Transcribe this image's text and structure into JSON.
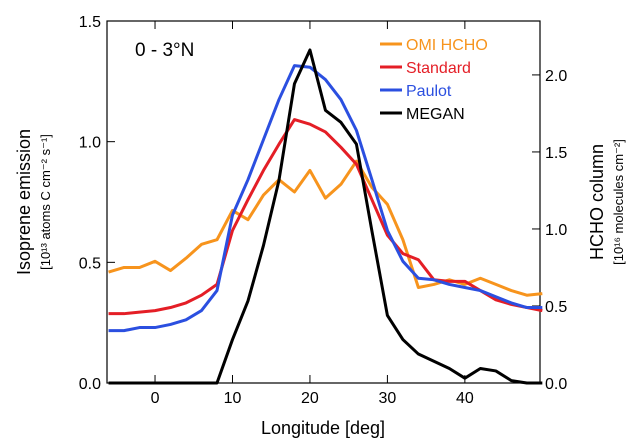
{
  "chart_data": {
    "type": "line",
    "annotation": "0 - 3°N",
    "xlabel": "Longitude [deg]",
    "ylabel": "Isoprene emission",
    "ylabel_units": "[10¹³ atoms C cm⁻² s⁻¹]",
    "y2label": "HCHO column",
    "y2label_units": "[10¹⁶ molecules cm⁻²]",
    "x": [
      -6,
      -4,
      -2,
      0,
      2,
      4,
      6,
      8,
      10,
      12,
      14,
      16,
      18,
      20,
      22,
      24,
      26,
      28,
      30,
      32,
      34,
      36,
      38,
      40,
      42,
      44,
      46,
      48,
      50
    ],
    "xlim": [
      -6.2,
      49.7
    ],
    "xticks": [
      0,
      10,
      20,
      30,
      40
    ],
    "ylim": [
      0,
      1.5
    ],
    "yticks": [
      {
        "value": 0,
        "label": "0.0"
      },
      0.5,
      {
        "value": 1,
        "label": "1.0"
      },
      1.5
    ],
    "y2lim": [
      0,
      2.35
    ],
    "y2ticks": [
      {
        "value": 0,
        "label": "0.0"
      },
      0.5,
      {
        "value": 1,
        "label": "1.0"
      },
      1.5,
      {
        "value": 2,
        "label": "2.0"
      }
    ],
    "legend": "upper right",
    "series": [
      {
        "name": "OMI HCHO",
        "color": "#f7941d",
        "axis": "y2",
        "values": [
          0.72,
          0.75,
          0.75,
          0.79,
          0.73,
          0.81,
          0.9,
          0.93,
          1.12,
          1.06,
          1.22,
          1.32,
          1.24,
          1.38,
          1.2,
          1.29,
          1.44,
          1.27,
          1.16,
          0.93,
          0.62,
          0.64,
          0.67,
          0.64,
          0.68,
          0.64,
          0.6,
          0.57,
          0.58
        ]
      },
      {
        "name": "Standard",
        "color": "#e41e26",
        "axis": "y2",
        "values": [
          0.45,
          0.45,
          0.46,
          0.47,
          0.49,
          0.52,
          0.57,
          0.64,
          0.99,
          1.19,
          1.38,
          1.55,
          1.71,
          1.68,
          1.63,
          1.53,
          1.42,
          1.19,
          0.96,
          0.84,
          0.8,
          0.67,
          0.66,
          0.66,
          0.6,
          0.54,
          0.51,
          0.49,
          0.47
        ]
      },
      {
        "name": "Paulot",
        "color": "#2b4fe0",
        "axis": "y2",
        "values": [
          0.34,
          0.34,
          0.36,
          0.36,
          0.38,
          0.41,
          0.47,
          0.6,
          1.09,
          1.32,
          1.58,
          1.84,
          2.06,
          2.05,
          1.97,
          1.84,
          1.64,
          1.32,
          0.99,
          0.79,
          0.68,
          0.67,
          0.64,
          0.62,
          0.6,
          0.56,
          0.52,
          0.49,
          0.49
        ]
      },
      {
        "name": "MEGAN",
        "color": "#000000",
        "values": [
          0,
          0,
          0,
          0,
          0,
          0,
          0,
          0,
          0.18,
          0.34,
          0.57,
          0.84,
          1.24,
          1.38,
          1.13,
          1.08,
          0.99,
          0.63,
          0.28,
          0.18,
          0.12,
          0.09,
          0.06,
          0.02,
          0.06,
          0.05,
          0.01,
          0,
          0
        ]
      }
    ]
  }
}
